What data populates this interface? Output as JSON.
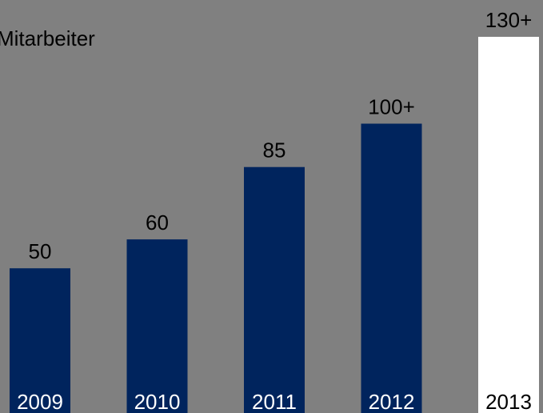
{
  "chart_data": {
    "type": "bar",
    "title": "Mitarbeiter",
    "categories": [
      "2009",
      "2010",
      "2011",
      "2012",
      "2013"
    ],
    "values": [
      50,
      60,
      85,
      100,
      130
    ],
    "data_labels": [
      "50",
      "60",
      "85",
      "100+",
      "130+"
    ],
    "ylim": [
      0,
      130
    ],
    "grid": false,
    "legend": "none",
    "colors": {
      "background": "#808080",
      "bar": "#00245d",
      "highlight_bar": "#ffffff",
      "category_text_on_bar": "#ffffff",
      "category_text_on_highlight": "#000000"
    }
  }
}
